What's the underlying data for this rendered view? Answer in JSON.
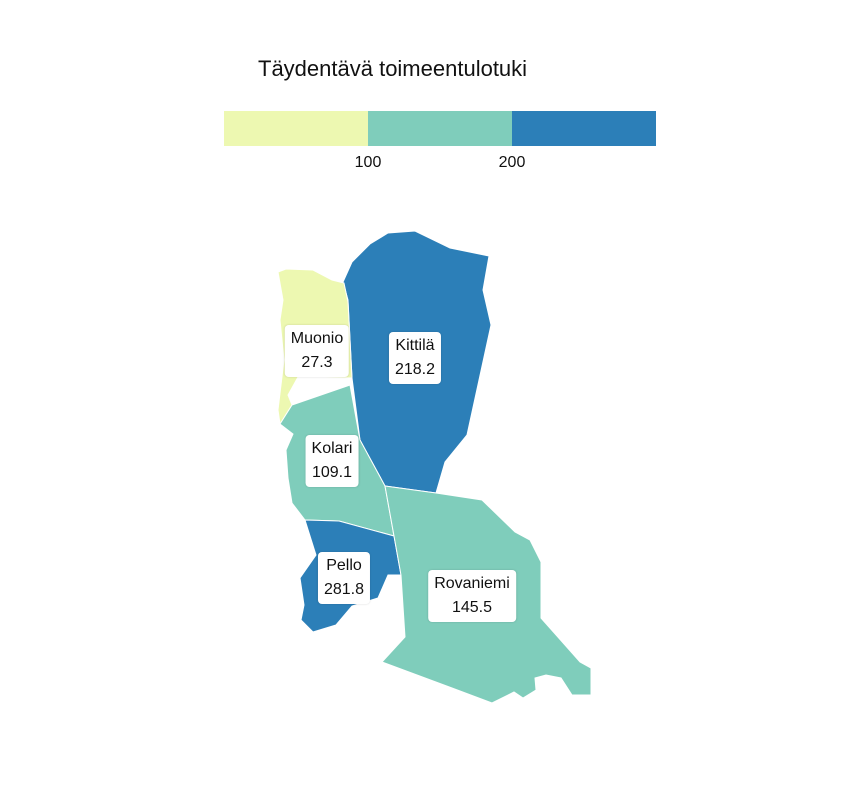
{
  "title": "Täydentävä toimeentulotuki",
  "legend": {
    "colors": [
      "#edf8b1",
      "#7fcdbb",
      "#2c7fb8"
    ],
    "ticks": [
      "100",
      "200"
    ]
  },
  "chart_data": {
    "type": "choropleth",
    "title": "Täydentävä toimeentulotuki",
    "bins": [
      {
        "min": 0,
        "max": 100,
        "color": "#edf8b1"
      },
      {
        "min": 100,
        "max": 200,
        "color": "#7fcdbb"
      },
      {
        "min": 200,
        "max": 300,
        "color": "#2c7fb8"
      }
    ],
    "regions": [
      {
        "name": "Muonio",
        "value": 27.3,
        "value_text": "27.3"
      },
      {
        "name": "Kittilä",
        "value": 218.2,
        "value_text": "218.2"
      },
      {
        "name": "Kolari",
        "value": 109.1,
        "value_text": "109.1"
      },
      {
        "name": "Pello",
        "value": 281.8,
        "value_text": "281.8"
      },
      {
        "name": "Rovaniemi",
        "value": 145.5,
        "value_text": "145.5"
      }
    ]
  }
}
